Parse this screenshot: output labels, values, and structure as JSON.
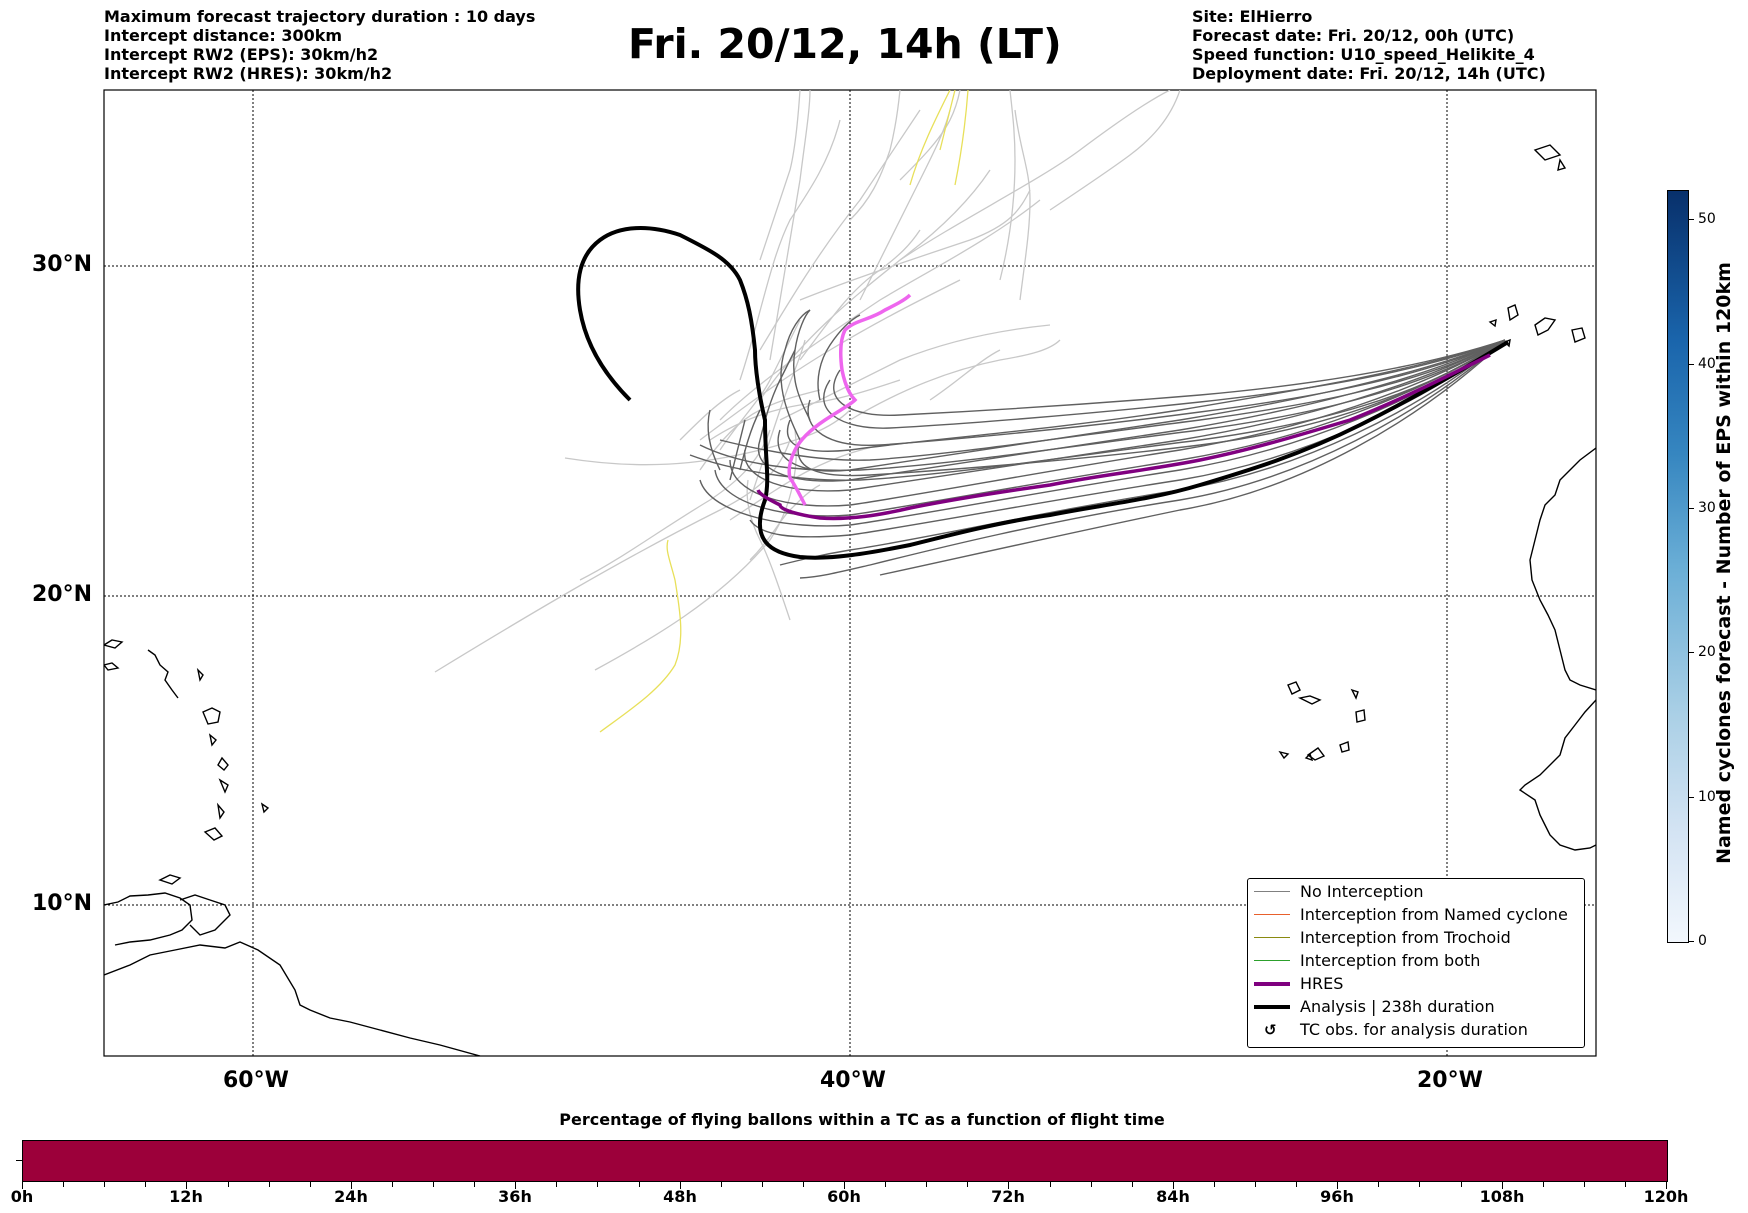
{
  "header_left": [
    "Maximum forecast trajectory duration : 10 days",
    "Intercept distance: 300km",
    "Intercept RW2 (EPS):  30km/h2",
    "Intercept RW2 (HRES): 30km/h2"
  ],
  "header_right": [
    "Site: ElHierro",
    "Forecast date: Fri. 20/12, 00h (UTC)",
    "Speed function: U10_speed_Helikite_4",
    "Deployment date: Fri. 20/12, 14h (UTC)"
  ],
  "title": "Fri. 20/12, 14h (LT)",
  "map": {
    "lat_labels": [
      "30°N",
      "20°N",
      "10°N"
    ],
    "lon_labels": [
      "60°W",
      "40°W",
      "20°W"
    ],
    "colors": {
      "no_interception": "#555555",
      "ensemble_light": "#c8c8c8",
      "hres": "#7f007f",
      "analysis": "#000000",
      "hres_pink": "#ee66ee",
      "yellow": "#e8e05a"
    }
  },
  "legend": {
    "items": [
      {
        "label": "No Interception",
        "color": "#808080",
        "style": "thin"
      },
      {
        "label": "Interception from Named cyclone",
        "color": "#e8602c",
        "style": "thin"
      },
      {
        "label": "Interception from Trochoid",
        "color": "#8a8a10",
        "style": "thin"
      },
      {
        "label": "Interception from both",
        "color": "#2ca02c",
        "style": "thin"
      },
      {
        "label": "HRES",
        "color": "#7f007f",
        "style": "thick"
      },
      {
        "label": "Analysis | 238h duration",
        "color": "#000000",
        "style": "thick"
      },
      {
        "label": "TC obs. for analysis duration",
        "color": "#000000",
        "style": "symbol",
        "symbol": "↺"
      }
    ]
  },
  "colorbar_vertical": {
    "title": "Named cyclones forecast - Number of EPS within 120km",
    "ticks": [
      "0",
      "10",
      "20",
      "30",
      "40",
      "50"
    ],
    "range": [
      0,
      52
    ]
  },
  "colorbar_horizontal": {
    "title": "Percentage of flying ballons within a TC as a function of flight time",
    "color": "#9c003a",
    "ticks": [
      "0h",
      "12h",
      "24h",
      "36h",
      "48h",
      "60h",
      "72h",
      "84h",
      "96h",
      "108h",
      "120h"
    ]
  }
}
